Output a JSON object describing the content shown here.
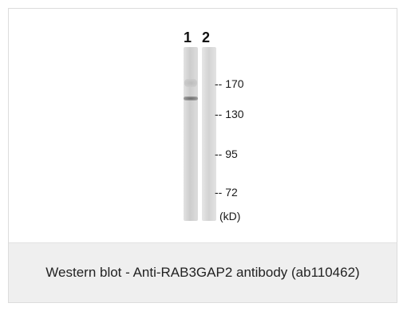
{
  "blot": {
    "lane_labels": [
      "1",
      "2"
    ],
    "markers": [
      "-- 170",
      "-- 130",
      "-- 95",
      "-- 72"
    ],
    "unit": "(kD)"
  },
  "caption": "Western blot - Anti-RAB3GAP2 antibody (ab110462)"
}
